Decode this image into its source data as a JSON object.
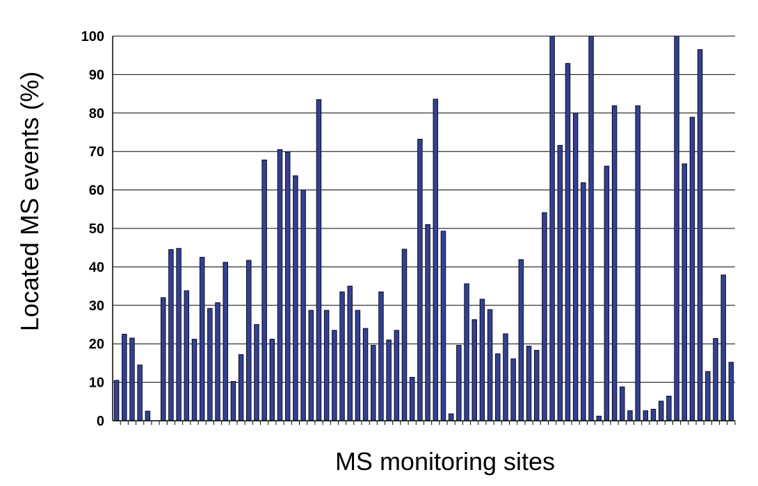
{
  "chart_data": {
    "type": "bar",
    "xlabel": "MS monitoring sites",
    "ylabel": "Located MS events (%)",
    "ylim": [
      0,
      100
    ],
    "yticks": [
      "0",
      "10",
      "20",
      "30",
      "40",
      "50",
      "60",
      "70",
      "80",
      "90",
      "100"
    ],
    "grid": true,
    "legend": "none",
    "bar_color": "#33418f",
    "values": [
      10.5,
      22.5,
      21.5,
      14.5,
      2.5,
      0,
      32,
      44.5,
      44.8,
      33.8,
      21.2,
      42.5,
      29.2,
      30.7,
      41.2,
      10.2,
      17.2,
      41.7,
      25,
      67.8,
      21.2,
      70.5,
      69.8,
      63.7,
      60,
      28.7,
      83.5,
      28.7,
      23.5,
      33.5,
      35,
      28.7,
      24,
      19.6,
      33.5,
      21,
      23.5,
      44.6,
      11.3,
      73.2,
      51,
      83.6,
      49.3,
      1.8,
      19.6,
      35.6,
      26.3,
      31.6,
      28.9,
      17.4,
      22.6,
      16.1,
      41.9,
      19.4,
      18.3,
      54.1,
      100,
      71.6,
      92.9,
      80,
      61.9,
      100,
      1.2,
      66.2,
      81.9,
      8.8,
      2.6,
      81.9,
      2.6,
      3,
      5.1,
      6.4,
      100,
      66.8,
      78.9,
      96.5,
      12.8,
      21.4,
      37.9,
      15.2
    ]
  }
}
